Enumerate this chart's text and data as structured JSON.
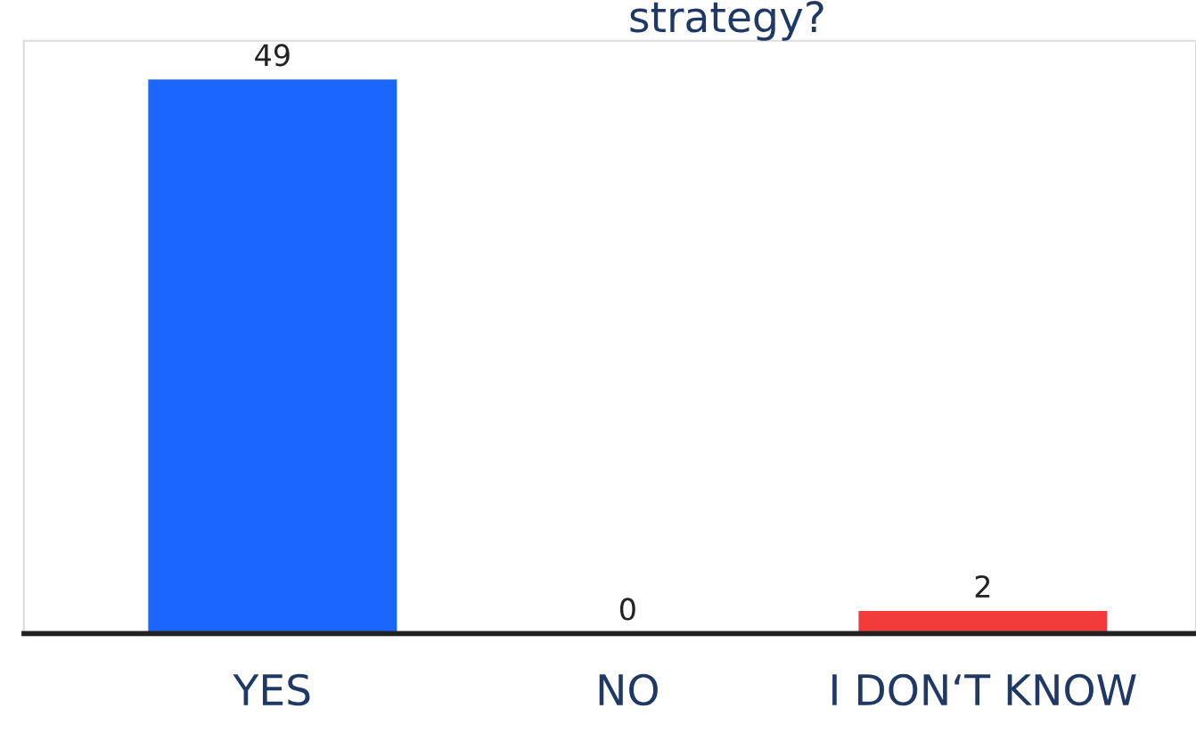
{
  "chart_data": {
    "type": "bar",
    "title": "strategy?",
    "categories": [
      "YES",
      "NO",
      "I DON‘T KNOW"
    ],
    "values": [
      49,
      0,
      2
    ],
    "colors": [
      "#1a66ff",
      "#1a66ff",
      "#f23b3b"
    ],
    "data_labels": true
  }
}
